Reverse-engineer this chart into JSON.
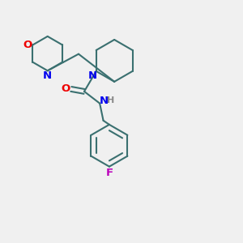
{
  "bg_color": "#f0f0f0",
  "bond_color": "#3a7070",
  "N_color": "#0000ee",
  "O_color": "#ee0000",
  "F_color": "#bb00bb",
  "H_color": "#888888",
  "line_width": 1.5,
  "font_size": 9.5,
  "figsize": [
    3.0,
    3.0
  ],
  "dpi": 100,
  "xlim": [
    0,
    10
  ],
  "ylim": [
    0,
    10
  ]
}
